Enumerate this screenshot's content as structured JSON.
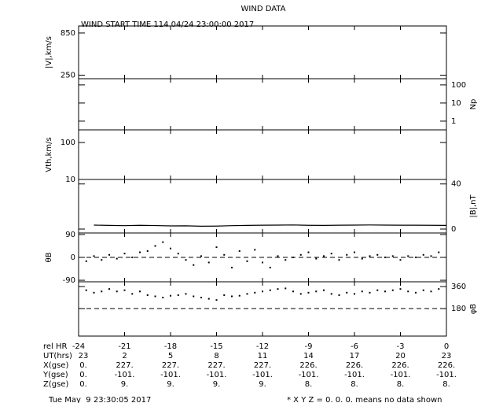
{
  "header": {
    "title": "WIND DATA",
    "subtitle": "WIND START TIME 114 04/24 23:00:00 2017"
  },
  "xaxis": {
    "label": "rel HR",
    "xlim": [
      -24,
      0
    ],
    "xticks": [
      -24,
      -21,
      -18,
      -15,
      -12,
      -9,
      -6,
      -3,
      0
    ]
  },
  "chart_data": [
    {
      "type": "empty",
      "ylabel": "|V|,km/s",
      "yside": "left",
      "ylim": [
        200,
        950
      ],
      "yticks": [
        850,
        250
      ]
    },
    {
      "type": "empty",
      "ylabel": "Np",
      "yside": "right",
      "log": true,
      "ylim": [
        0.33,
        220
      ],
      "yticks": [
        100,
        10,
        1
      ]
    },
    {
      "type": "empty",
      "ylabel": "Vth,km/s",
      "yside": "left",
      "log": true,
      "ylim": [
        10,
        220
      ],
      "yticks": [
        100,
        10
      ]
    },
    {
      "type": "line",
      "ylabel": "|B|,nT",
      "yside": "right",
      "ylim": [
        -3.5,
        44
      ],
      "yticks": [
        40,
        0
      ],
      "x": [
        -23,
        -22,
        -21,
        -20,
        -19,
        -18,
        -17,
        -16,
        -15,
        -14,
        -13,
        -12,
        -11,
        -10,
        -9,
        -8,
        -7,
        -6,
        -5,
        -4,
        -3,
        -2,
        -1,
        0
      ],
      "series": [
        {
          "color": "#000000",
          "values": [
            3.5,
            3.2,
            3.0,
            3.3,
            3.1,
            2.8,
            2.9,
            2.5,
            2.6,
            3.0,
            3.2,
            3.4,
            3.5,
            3.6,
            3.3,
            3.2,
            3.4,
            3.5,
            3.6,
            3.5,
            3.4,
            3.4,
            3.3,
            3.2
          ]
        }
      ]
    },
    {
      "type": "scatter",
      "ylabel": "θB",
      "yside": "left",
      "ylim": [
        -96,
        96
      ],
      "yticks": [
        90,
        0,
        -90
      ],
      "hlines": [
        0
      ],
      "x": [
        -23.5,
        -23,
        -22.5,
        -22,
        -21.5,
        -21,
        -20.5,
        -20,
        -19.5,
        -19,
        -18.5,
        -18,
        -17.5,
        -17,
        -16.5,
        -16,
        -15.5,
        -15,
        -14.5,
        -14,
        -13.5,
        -13,
        -12.5,
        -12,
        -11.5,
        -11,
        -10.5,
        -10,
        -9.5,
        -9,
        -8.5,
        -8,
        -7.5,
        -7,
        -6.5,
        -6,
        -5.5,
        -5,
        -4.5,
        -4,
        -3.5,
        -3,
        -2.5,
        -2,
        -1.5,
        -1,
        -0.5
      ],
      "series": [
        {
          "color": "#000000",
          "values": [
            -15,
            5,
            -10,
            10,
            -5,
            15,
            0,
            20,
            25,
            45,
            60,
            35,
            15,
            -10,
            -30,
            5,
            -20,
            40,
            10,
            -40,
            25,
            -15,
            30,
            -20,
            -40,
            5,
            -10,
            0,
            10,
            20,
            -5,
            5,
            15,
            -10,
            10,
            20,
            -5,
            5,
            10,
            0,
            5,
            -10,
            5,
            0,
            10,
            5,
            20
          ]
        }
      ]
    },
    {
      "type": "scatter",
      "ylabel": "φB",
      "yside": "right",
      "ylim": [
        -45,
        399
      ],
      "yticks": [
        360,
        180
      ],
      "hlines": [
        180
      ],
      "x": [
        -23.5,
        -23,
        -22.5,
        -22,
        -21.5,
        -21,
        -20.5,
        -20,
        -19.5,
        -19,
        -18.5,
        -18,
        -17.5,
        -17,
        -16.5,
        -16,
        -15.5,
        -15,
        -14.5,
        -14,
        -13.5,
        -13,
        -12.5,
        -12,
        -11.5,
        -11,
        -10.5,
        -10,
        -9.5,
        -9,
        -8.5,
        -8,
        -7.5,
        -7,
        -6.5,
        -6,
        -5.5,
        -5,
        -4.5,
        -4,
        -3.5,
        -3,
        -2.5,
        -2,
        -1.5,
        -1,
        -0.5
      ],
      "series": [
        {
          "color": "#000000",
          "values": [
            330,
            310,
            320,
            340,
            320,
            330,
            300,
            320,
            290,
            280,
            270,
            285,
            290,
            300,
            280,
            270,
            260,
            250,
            290,
            280,
            285,
            300,
            310,
            320,
            330,
            340,
            345,
            320,
            300,
            310,
            320,
            330,
            300,
            290,
            310,
            300,
            320,
            310,
            330,
            320,
            330,
            340,
            320,
            310,
            330,
            320,
            340
          ]
        }
      ]
    }
  ],
  "table": {
    "rows": [
      {
        "label": "UT(hrs)",
        "values": [
          "23",
          "2",
          "5",
          "8",
          "11",
          "14",
          "17",
          "20",
          "23"
        ]
      },
      {
        "label": "X(gse)",
        "values": [
          "0.",
          "227.",
          "227.",
          "227.",
          "227.",
          "226.",
          "226.",
          "226.",
          "226."
        ]
      },
      {
        "label": "Y(gse)",
        "values": [
          "0.",
          "-101.",
          "-101.",
          "-101.",
          "-101.",
          "-101.",
          "-101.",
          "-101.",
          "-101."
        ]
      },
      {
        "label": "Z(gse)",
        "values": [
          "0.",
          "9.",
          "9.",
          "9.",
          "9.",
          "8.",
          "8.",
          "8.",
          "8."
        ]
      }
    ]
  },
  "footer": {
    "timestamp": "Tue May  9 23:30:05 2017",
    "note": "* X Y Z = 0. 0. 0. means no data shown"
  }
}
